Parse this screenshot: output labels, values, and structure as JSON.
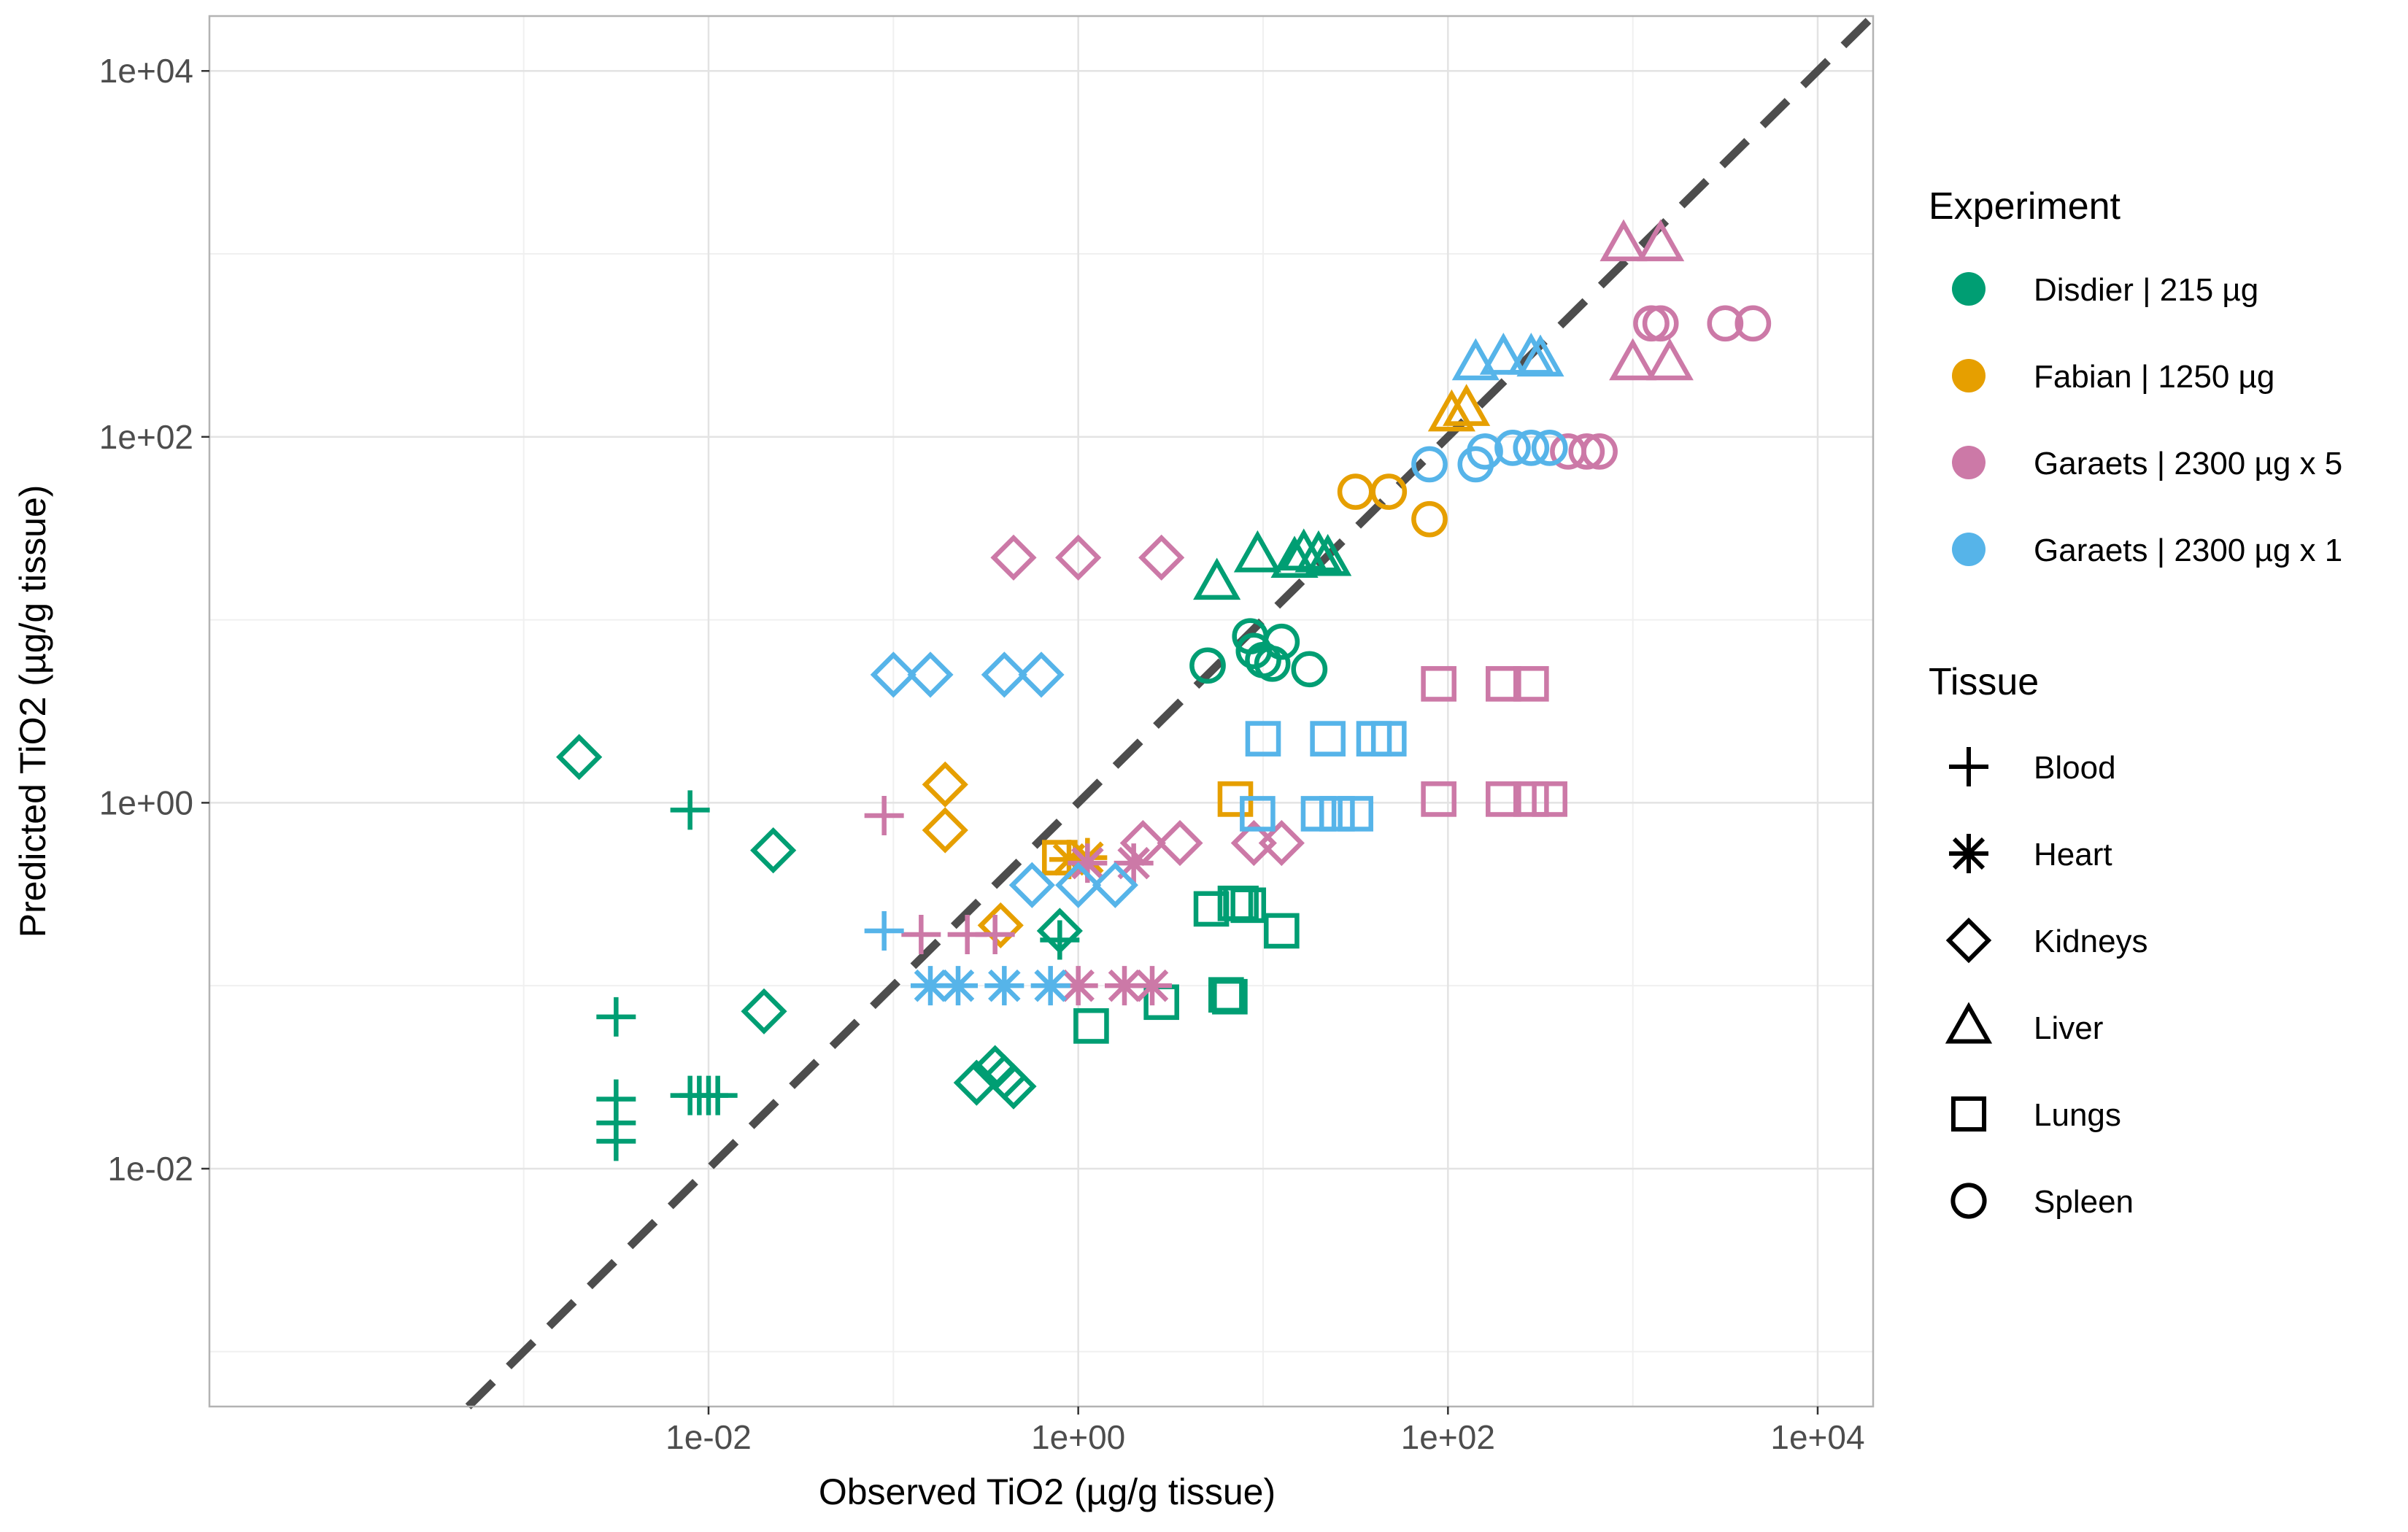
{
  "chart_data": {
    "type": "scatter",
    "title": "",
    "xlabel": "Observed TiO2 (µg/g tissue)",
    "ylabel": "Predicted TiO2 (µg/g tissue)",
    "x_scale": "log10",
    "y_scale": "log10",
    "xlim_log10": [
      -4.7,
      4.3
    ],
    "ylim_log10": [
      -3.3,
      4.3
    ],
    "x_ticks": [
      {
        "log10": -2,
        "label": "1e-02"
      },
      {
        "log10": 0,
        "label": "1e+00"
      },
      {
        "log10": 2,
        "label": "1e+02"
      },
      {
        "log10": 4,
        "label": "1e+04"
      }
    ],
    "y_ticks": [
      {
        "log10": -2,
        "label": "1e-02"
      },
      {
        "log10": 0,
        "label": "1e+00"
      },
      {
        "log10": 2,
        "label": "1e+02"
      },
      {
        "log10": 4,
        "label": "1e+04"
      }
    ],
    "reference_line": "identity (y = x), dashed",
    "legend_position": "right",
    "legend_experiment_title": "Experiment",
    "legend_tissue_title": "Tissue",
    "series": [
      {
        "name": "Disdier | 215 µg",
        "color": "#009E73",
        "points": [
          {
            "tissue": "Blood",
            "x": -2.1,
            "y": -0.04
          },
          {
            "tissue": "Blood",
            "x": -2.5,
            "y": -1.17
          },
          {
            "tissue": "Blood",
            "x": -2.5,
            "y": -1.62
          },
          {
            "tissue": "Blood",
            "x": -2.5,
            "y": -1.75
          },
          {
            "tissue": "Blood",
            "x": -2.5,
            "y": -1.85
          },
          {
            "tissue": "Blood",
            "x": -2.1,
            "y": -1.6
          },
          {
            "tissue": "Blood",
            "x": -2.05,
            "y": -1.6
          },
          {
            "tissue": "Blood",
            "x": -2.0,
            "y": -1.6
          },
          {
            "tissue": "Blood",
            "x": -1.95,
            "y": -1.6
          },
          {
            "tissue": "Blood",
            "x": -0.1,
            "y": -0.75
          },
          {
            "tissue": "Kidneys",
            "x": -2.7,
            "y": 0.25
          },
          {
            "tissue": "Kidneys",
            "x": -1.65,
            "y": -0.26
          },
          {
            "tissue": "Kidneys",
            "x": -1.7,
            "y": -1.14
          },
          {
            "tissue": "Kidneys",
            "x": -0.1,
            "y": -0.7
          },
          {
            "tissue": "Kidneys",
            "x": -0.55,
            "y": -1.53
          },
          {
            "tissue": "Kidneys",
            "x": -0.45,
            "y": -1.45
          },
          {
            "tissue": "Kidneys",
            "x": -0.4,
            "y": -1.5
          },
          {
            "tissue": "Kidneys",
            "x": -0.35,
            "y": -1.55
          },
          {
            "tissue": "Liver",
            "x": 0.75,
            "y": 1.2
          },
          {
            "tissue": "Liver",
            "x": 0.97,
            "y": 1.35
          },
          {
            "tissue": "Liver",
            "x": 1.17,
            "y": 1.32
          },
          {
            "tissue": "Liver",
            "x": 1.22,
            "y": 1.36
          },
          {
            "tissue": "Liver",
            "x": 1.3,
            "y": 1.35
          },
          {
            "tissue": "Liver",
            "x": 1.35,
            "y": 1.33
          },
          {
            "tissue": "Lungs",
            "x": 0.07,
            "y": -1.22
          },
          {
            "tissue": "Lungs",
            "x": 0.72,
            "y": -0.58
          },
          {
            "tissue": "Lungs",
            "x": 0.85,
            "y": -0.55
          },
          {
            "tissue": "Lungs",
            "x": 0.88,
            "y": -0.55
          },
          {
            "tissue": "Lungs",
            "x": 0.92,
            "y": -0.56
          },
          {
            "tissue": "Lungs",
            "x": 0.82,
            "y": -1.06
          },
          {
            "tissue": "Lungs",
            "x": 0.8,
            "y": -1.05
          },
          {
            "tissue": "Lungs",
            "x": 1.1,
            "y": -0.7
          },
          {
            "tissue": "Lungs",
            "x": 0.45,
            "y": -1.09
          },
          {
            "tissue": "Spleen",
            "x": 0.7,
            "y": 0.75
          },
          {
            "tissue": "Spleen",
            "x": 0.93,
            "y": 0.91
          },
          {
            "tissue": "Spleen",
            "x": 0.95,
            "y": 0.83
          },
          {
            "tissue": "Spleen",
            "x": 1.0,
            "y": 0.78
          },
          {
            "tissue": "Spleen",
            "x": 1.05,
            "y": 0.76
          },
          {
            "tissue": "Spleen",
            "x": 1.1,
            "y": 0.88
          },
          {
            "tissue": "Spleen",
            "x": 1.25,
            "y": 0.73
          }
        ]
      },
      {
        "name": "Fabian | 1250 µg",
        "color": "#E69F00",
        "points": [
          {
            "tissue": "Heart",
            "x": -0.05,
            "y": -0.31
          },
          {
            "tissue": "Heart",
            "x": 0.05,
            "y": -0.3
          },
          {
            "tissue": "Kidneys",
            "x": -0.72,
            "y": 0.1
          },
          {
            "tissue": "Kidneys",
            "x": -0.72,
            "y": -0.15
          },
          {
            "tissue": "Kidneys",
            "x": -0.42,
            "y": -0.67
          },
          {
            "tissue": "Lungs",
            "x": -0.1,
            "y": -0.3
          },
          {
            "tissue": "Lungs",
            "x": 0.85,
            "y": 0.02
          },
          {
            "tissue": "Liver",
            "x": 2.02,
            "y": 2.12
          },
          {
            "tissue": "Liver",
            "x": 2.1,
            "y": 2.15
          },
          {
            "tissue": "Spleen",
            "x": 1.5,
            "y": 1.7
          },
          {
            "tissue": "Spleen",
            "x": 1.68,
            "y": 1.7
          },
          {
            "tissue": "Spleen",
            "x": 1.9,
            "y": 1.55
          }
        ]
      },
      {
        "name": "Garaets | 2300 µg x 5",
        "color": "#CC79A7",
        "points": [
          {
            "tissue": "Blood",
            "x": -1.05,
            "y": -0.07
          },
          {
            "tissue": "Blood",
            "x": -0.85,
            "y": -0.72
          },
          {
            "tissue": "Blood",
            "x": -0.6,
            "y": -0.72
          },
          {
            "tissue": "Blood",
            "x": -0.45,
            "y": -0.72
          },
          {
            "tissue": "Heart",
            "x": 0.05,
            "y": -0.33
          },
          {
            "tissue": "Heart",
            "x": 0.3,
            "y": -0.33
          },
          {
            "tissue": "Heart",
            "x": 0.0,
            "y": -1.0
          },
          {
            "tissue": "Heart",
            "x": 0.25,
            "y": -1.0
          },
          {
            "tissue": "Heart",
            "x": 0.4,
            "y": -1.0
          },
          {
            "tissue": "Kidneys",
            "x": -0.35,
            "y": 1.34
          },
          {
            "tissue": "Kidneys",
            "x": 0.0,
            "y": 1.34
          },
          {
            "tissue": "Kidneys",
            "x": 0.45,
            "y": 1.34
          },
          {
            "tissue": "Kidneys",
            "x": 0.35,
            "y": -0.22
          },
          {
            "tissue": "Kidneys",
            "x": 0.55,
            "y": -0.22
          },
          {
            "tissue": "Kidneys",
            "x": 0.95,
            "y": -0.22
          },
          {
            "tissue": "Kidneys",
            "x": 1.1,
            "y": -0.22
          },
          {
            "tissue": "Liver",
            "x": 2.95,
            "y": 3.05
          },
          {
            "tissue": "Liver",
            "x": 3.15,
            "y": 3.05
          },
          {
            "tissue": "Liver",
            "x": 3.0,
            "y": 2.4
          },
          {
            "tissue": "Liver",
            "x": 3.2,
            "y": 2.4
          },
          {
            "tissue": "Lungs",
            "x": 1.95,
            "y": 0.65
          },
          {
            "tissue": "Lungs",
            "x": 2.3,
            "y": 0.65
          },
          {
            "tissue": "Lungs",
            "x": 2.45,
            "y": 0.65
          },
          {
            "tissue": "Lungs",
            "x": 1.95,
            "y": 0.02
          },
          {
            "tissue": "Lungs",
            "x": 2.3,
            "y": 0.02
          },
          {
            "tissue": "Lungs",
            "x": 2.45,
            "y": 0.02
          },
          {
            "tissue": "Lungs",
            "x": 2.55,
            "y": 0.02
          },
          {
            "tissue": "Spleen",
            "x": 3.1,
            "y": 2.62
          },
          {
            "tissue": "Spleen",
            "x": 3.15,
            "y": 2.62
          },
          {
            "tissue": "Spleen",
            "x": 3.5,
            "y": 2.62
          },
          {
            "tissue": "Spleen",
            "x": 3.65,
            "y": 2.62
          },
          {
            "tissue": "Spleen",
            "x": 2.65,
            "y": 1.92
          },
          {
            "tissue": "Spleen",
            "x": 2.75,
            "y": 1.92
          },
          {
            "tissue": "Spleen",
            "x": 2.82,
            "y": 1.92
          }
        ]
      },
      {
        "name": "Garaets | 2300 µg x 1",
        "color": "#56B4E9",
        "points": [
          {
            "tissue": "Blood",
            "x": -1.05,
            "y": -0.7
          },
          {
            "tissue": "Heart",
            "x": -0.8,
            "y": -1.0
          },
          {
            "tissue": "Heart",
            "x": -0.65,
            "y": -1.0
          },
          {
            "tissue": "Heart",
            "x": -0.4,
            "y": -1.0
          },
          {
            "tissue": "Heart",
            "x": -0.15,
            "y": -1.0
          },
          {
            "tissue": "Kidneys",
            "x": -1.0,
            "y": 0.7
          },
          {
            "tissue": "Kidneys",
            "x": -0.8,
            "y": 0.7
          },
          {
            "tissue": "Kidneys",
            "x": -0.4,
            "y": 0.7
          },
          {
            "tissue": "Kidneys",
            "x": -0.2,
            "y": 0.7
          },
          {
            "tissue": "Kidneys",
            "x": -0.25,
            "y": -0.45
          },
          {
            "tissue": "Kidneys",
            "x": 0.0,
            "y": -0.45
          },
          {
            "tissue": "Kidneys",
            "x": 0.2,
            "y": -0.45
          },
          {
            "tissue": "Liver",
            "x": 2.15,
            "y": 2.4
          },
          {
            "tissue": "Liver",
            "x": 2.3,
            "y": 2.43
          },
          {
            "tissue": "Liver",
            "x": 2.45,
            "y": 2.43
          },
          {
            "tissue": "Liver",
            "x": 2.5,
            "y": 2.42
          },
          {
            "tissue": "Lungs",
            "x": 1.0,
            "y": 0.35
          },
          {
            "tissue": "Lungs",
            "x": 1.35,
            "y": 0.35
          },
          {
            "tissue": "Lungs",
            "x": 1.6,
            "y": 0.35
          },
          {
            "tissue": "Lungs",
            "x": 1.68,
            "y": 0.35
          },
          {
            "tissue": "Lungs",
            "x": 0.97,
            "y": -0.06
          },
          {
            "tissue": "Lungs",
            "x": 1.3,
            "y": -0.06
          },
          {
            "tissue": "Lungs",
            "x": 1.4,
            "y": -0.06
          },
          {
            "tissue": "Lungs",
            "x": 1.5,
            "y": -0.06
          },
          {
            "tissue": "Spleen",
            "x": 1.9,
            "y": 1.85
          },
          {
            "tissue": "Spleen",
            "x": 2.15,
            "y": 1.85
          },
          {
            "tissue": "Spleen",
            "x": 2.2,
            "y": 1.92
          },
          {
            "tissue": "Spleen",
            "x": 2.35,
            "y": 1.94
          },
          {
            "tissue": "Spleen",
            "x": 2.45,
            "y": 1.94
          },
          {
            "tissue": "Spleen",
            "x": 2.55,
            "y": 1.94
          }
        ]
      }
    ]
  },
  "legend": {
    "experiment_title": "Experiment",
    "experiments": [
      {
        "label": "Disdier | 215 µg",
        "color": "#009E73"
      },
      {
        "label": "Fabian | 1250 µg",
        "color": "#E69F00"
      },
      {
        "label": "Garaets | 2300 µg x 5",
        "color": "#CC79A7"
      },
      {
        "label": "Garaets | 2300 µg x 1",
        "color": "#56B4E9"
      }
    ],
    "tissue_title": "Tissue",
    "tissues": [
      {
        "label": "Blood",
        "shape": "plus-icon"
      },
      {
        "label": "Heart",
        "shape": "asterisk-icon"
      },
      {
        "label": "Kidneys",
        "shape": "diamond-icon"
      },
      {
        "label": "Liver",
        "shape": "triangle-icon"
      },
      {
        "label": "Lungs",
        "shape": "square-icon"
      },
      {
        "label": "Spleen",
        "shape": "circle-icon"
      }
    ]
  }
}
